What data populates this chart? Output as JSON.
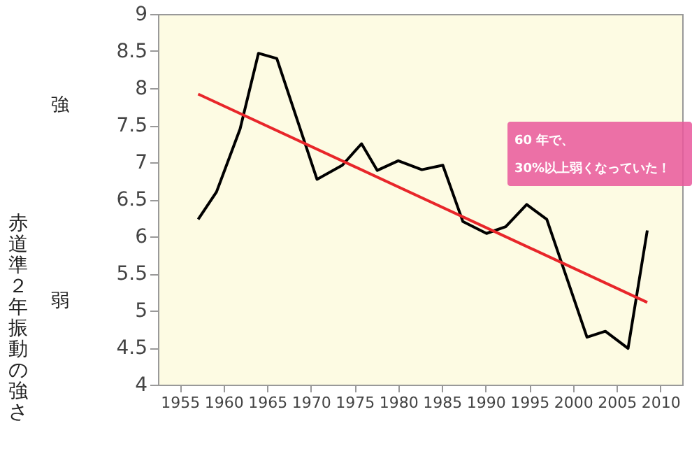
{
  "chart_data": {
    "type": "line",
    "ylabel": "赤道準２年振動の強さ",
    "xlim": [
      1952.5,
      2012.5
    ],
    "xticks": [
      1955,
      1960,
      1965,
      1970,
      1975,
      1980,
      1985,
      1990,
      1995,
      2000,
      2005,
      2010
    ],
    "ylim": [
      4,
      9
    ],
    "yticks": [
      4,
      4.5,
      5,
      5.5,
      6,
      6.5,
      7,
      7.5,
      8,
      8.5,
      9
    ],
    "grid": false,
    "marker": "none",
    "line_style": "solid",
    "series": [
      {
        "color": "#000000",
        "x": [
          1957.1,
          1959.2,
          1961.9,
          1964.0,
          1966.1,
          1970.7,
          1973.6,
          1975.8,
          1977.6,
          1980.0,
          1982.7,
          1985.1,
          1987.4,
          1990.1,
          1992.3,
          1994.7,
          1997.0,
          2001.6,
          2003.7,
          2006.3,
          2008.5
        ],
        "values": [
          6.23,
          6.6,
          7.45,
          8.47,
          8.4,
          6.77,
          6.96,
          7.25,
          6.89,
          7.02,
          6.9,
          6.96,
          6.2,
          6.04,
          6.13,
          6.43,
          6.23,
          4.64,
          4.72,
          4.49,
          6.08
        ]
      },
      {
        "type": "line",
        "color": "#e8262a",
        "x": [
          1957.1,
          2008.5
        ],
        "values": [
          7.92,
          5.11
        ]
      }
    ],
    "annotations": [
      "強",
      "弱",
      "60 年で、\n30%以上弱くなっていた！"
    ]
  }
}
